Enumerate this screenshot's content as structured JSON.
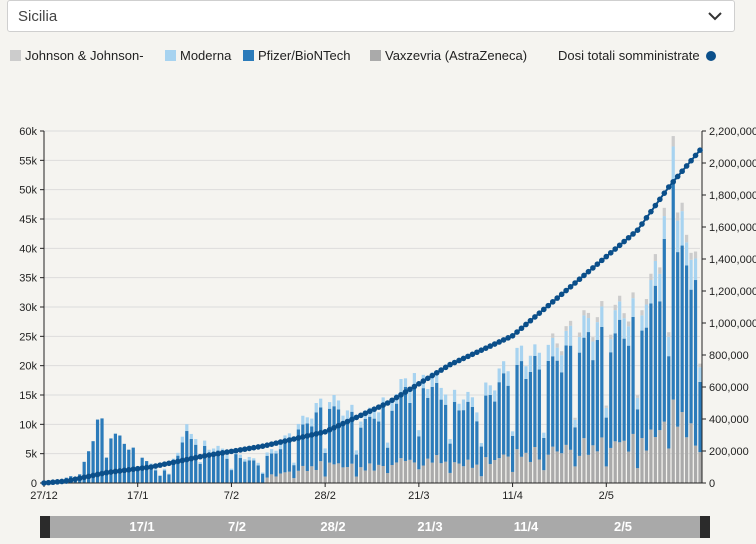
{
  "region_select": {
    "value": "Sicilia"
  },
  "colors": {
    "jj": "#cccccc",
    "moderna": "#a7d3f0",
    "pfizer": "#2b7bba",
    "astrazeneca": "#aaaaaa",
    "cumulative": "#0b4f8a"
  },
  "legend": {
    "jj": "Johnson & Johnson-",
    "moderna": "Moderna",
    "pfizer": "Pfizer/BioNTech",
    "astrazeneca": "Vaxzevria (AstraZeneca)",
    "cumulative": "Dosi totali somministrate"
  },
  "chart_data": {
    "type": "bar",
    "stacked": true,
    "secondary_series_type": "line",
    "x_start": "2020-12-27",
    "x_end": "2021-05-23",
    "x_ticks": [
      {
        "date": "2020-12-27",
        "label": "27/12"
      },
      {
        "date": "2021-01-17",
        "label": "17/1"
      },
      {
        "date": "2021-02-07",
        "label": "7/2"
      },
      {
        "date": "2021-02-28",
        "label": "28/2"
      },
      {
        "date": "2021-03-21",
        "label": "21/3"
      },
      {
        "date": "2021-04-11",
        "label": "11/4"
      },
      {
        "date": "2021-05-02",
        "label": "2/5"
      }
    ],
    "y_left": {
      "ticks": [
        0,
        5000,
        10000,
        15000,
        20000,
        25000,
        30000,
        35000,
        40000,
        45000,
        50000,
        55000,
        60000
      ],
      "tick_labels": [
        "0",
        "5k",
        "10k",
        "15k",
        "20k",
        "25k",
        "30k",
        "35k",
        "40k",
        "45k",
        "50k",
        "55k",
        "60k"
      ],
      "ylim": [
        0,
        60000
      ]
    },
    "y_right": {
      "ticks": [
        0,
        200000,
        400000,
        600000,
        800000,
        1000000,
        1200000,
        1400000,
        1600000,
        1800000,
        2000000,
        2200000
      ],
      "tick_labels": [
        "0",
        "200,000",
        "400,000",
        "600,000",
        "800,000",
        "1,000,000",
        "1,200,000",
        "1,400,000",
        "1,600,000",
        "1,800,000",
        "2,000,000",
        "2,200,000"
      ],
      "ylim": [
        0,
        2200000
      ]
    },
    "daily_doses_anchors": [
      {
        "date": "2020-12-27",
        "value": 200
      },
      {
        "date": "2020-12-31",
        "value": 600
      },
      {
        "date": "2021-01-04",
        "value": 1500
      },
      {
        "date": "2021-01-06",
        "value": 5000
      },
      {
        "date": "2021-01-08",
        "value": 10500
      },
      {
        "date": "2021-01-11",
        "value": 8500
      },
      {
        "date": "2021-01-15",
        "value": 6000
      },
      {
        "date": "2021-01-18",
        "value": 4500
      },
      {
        "date": "2021-01-22",
        "value": 1500
      },
      {
        "date": "2021-01-25",
        "value": 4000
      },
      {
        "date": "2021-01-28",
        "value": 9000
      },
      {
        "date": "2021-02-02",
        "value": 6000
      },
      {
        "date": "2021-02-08",
        "value": 5000
      },
      {
        "date": "2021-02-13",
        "value": 3500
      },
      {
        "date": "2021-02-18",
        "value": 6500
      },
      {
        "date": "2021-02-22",
        "value": 9500
      },
      {
        "date": "2021-02-26",
        "value": 12500
      },
      {
        "date": "2021-03-01",
        "value": 14000
      },
      {
        "date": "2021-03-05",
        "value": 12000
      },
      {
        "date": "2021-03-10",
        "value": 11500
      },
      {
        "date": "2021-03-15",
        "value": 14500
      },
      {
        "date": "2021-03-20",
        "value": 18000
      },
      {
        "date": "2021-03-24",
        "value": 17500
      },
      {
        "date": "2021-03-29",
        "value": 14500
      },
      {
        "date": "2021-04-03",
        "value": 13500
      },
      {
        "date": "2021-04-08",
        "value": 18000
      },
      {
        "date": "2021-04-13",
        "value": 21500
      },
      {
        "date": "2021-04-17",
        "value": 21000
      },
      {
        "date": "2021-04-22",
        "value": 24000
      },
      {
        "date": "2021-04-27",
        "value": 26500
      },
      {
        "date": "2021-05-02",
        "value": 28000
      },
      {
        "date": "2021-05-07",
        "value": 29000
      },
      {
        "date": "2021-05-12",
        "value": 32000
      },
      {
        "date": "2021-05-15",
        "value": 45000
      },
      {
        "date": "2021-05-17",
        "value": 57000
      },
      {
        "date": "2021-05-20",
        "value": 38000
      },
      {
        "date": "2021-05-22",
        "value": 41000
      }
    ],
    "cumulative_anchors": [
      {
        "date": "2020-12-27",
        "value": 0
      },
      {
        "date": "2021-01-01",
        "value": 12000
      },
      {
        "date": "2021-01-10",
        "value": 65000
      },
      {
        "date": "2021-01-20",
        "value": 100000
      },
      {
        "date": "2021-02-01",
        "value": 170000
      },
      {
        "date": "2021-02-14",
        "value": 230000
      },
      {
        "date": "2021-02-28",
        "value": 320000
      },
      {
        "date": "2021-03-14",
        "value": 500000
      },
      {
        "date": "2021-03-28",
        "value": 740000
      },
      {
        "date": "2021-04-11",
        "value": 920000
      },
      {
        "date": "2021-04-25",
        "value": 1250000
      },
      {
        "date": "2021-05-09",
        "value": 1580000
      },
      {
        "date": "2021-05-16",
        "value": 1850000
      },
      {
        "date": "2021-05-23",
        "value": 2080000
      }
    ]
  },
  "brush": {
    "ticks": [
      "17/1",
      "7/2",
      "28/2",
      "21/3",
      "11/4",
      "2/5"
    ]
  }
}
